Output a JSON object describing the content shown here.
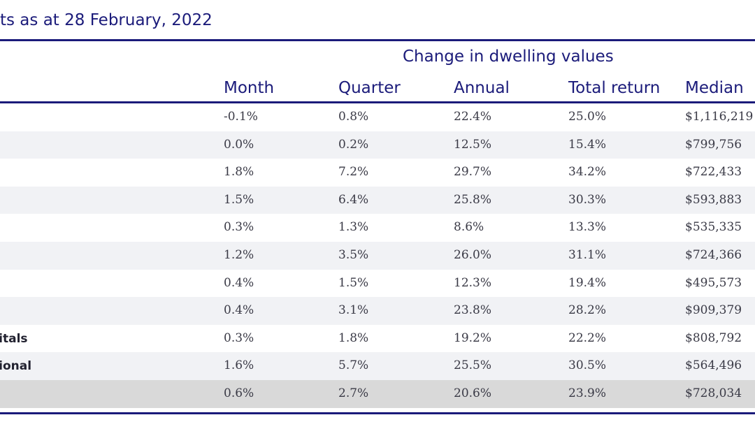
{
  "title": "ts as at 28 February, 2022",
  "table": {
    "group_header": "Change in dwelling values",
    "columns": {
      "month": "Month",
      "quarter": "Quarter",
      "annual": "Annual",
      "total_return": "Total return",
      "median": "Median"
    },
    "rows": [
      {
        "region": "",
        "month": "-0.1%",
        "quarter": "0.8%",
        "annual": "22.4%",
        "total_return": "25.0%",
        "median": "$1,116,219"
      },
      {
        "region": "",
        "month": "0.0%",
        "quarter": "0.2%",
        "annual": "12.5%",
        "total_return": "15.4%",
        "median": "$799,756"
      },
      {
        "region": "",
        "month": "1.8%",
        "quarter": "7.2%",
        "annual": "29.7%",
        "total_return": "34.2%",
        "median": "$722,433"
      },
      {
        "region": "",
        "month": "1.5%",
        "quarter": "6.4%",
        "annual": "25.8%",
        "total_return": "30.3%",
        "median": "$593,883"
      },
      {
        "region": "",
        "month": "0.3%",
        "quarter": "1.3%",
        "annual": "8.6%",
        "total_return": "13.3%",
        "median": "$535,335"
      },
      {
        "region": "",
        "month": "1.2%",
        "quarter": "3.5%",
        "annual": "26.0%",
        "total_return": "31.1%",
        "median": "$724,366"
      },
      {
        "region": "",
        "month": "0.4%",
        "quarter": "1.5%",
        "annual": "12.3%",
        "total_return": "19.4%",
        "median": "$495,573"
      },
      {
        "region": "",
        "month": "0.4%",
        "quarter": "3.1%",
        "annual": "23.8%",
        "total_return": "28.2%",
        "median": "$909,379"
      },
      {
        "region": "pitals",
        "month": "0.3%",
        "quarter": "1.8%",
        "annual": "19.2%",
        "total_return": "22.2%",
        "median": "$808,792"
      },
      {
        "region": "gional",
        "month": "1.6%",
        "quarter": "5.7%",
        "annual": "25.5%",
        "total_return": "30.5%",
        "median": "$564,496"
      },
      {
        "region": "",
        "month": "0.6%",
        "quarter": "2.7%",
        "annual": "20.6%",
        "total_return": "23.9%",
        "median": "$728,034"
      }
    ]
  },
  "colors": {
    "heading": "#1b1b7a",
    "row_stripe": "#f1f2f5",
    "total_row": "#d9d9d9",
    "cell_text": "#3a3a46"
  }
}
